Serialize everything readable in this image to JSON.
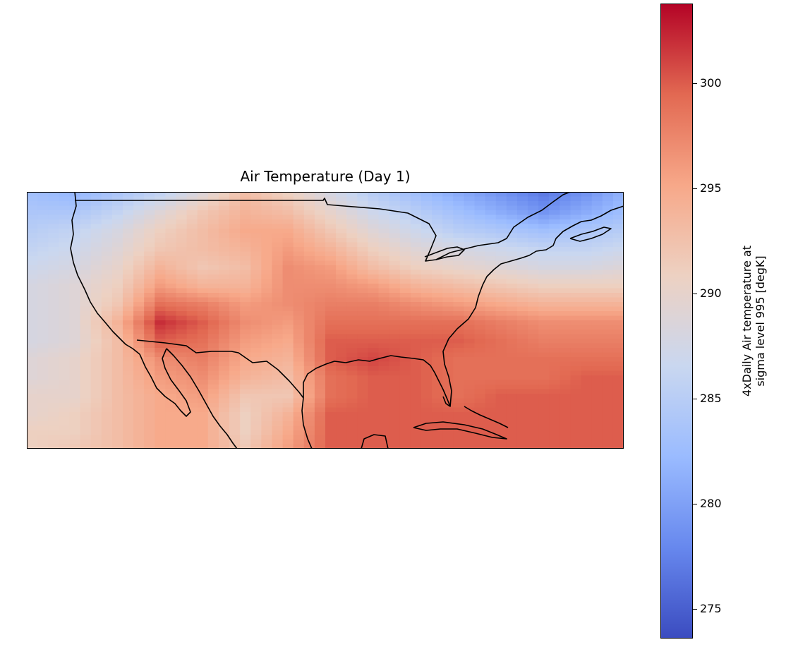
{
  "title": "Air Temperature (Day 1)",
  "colorbar": {
    "label_line1": "4xDaily Air temperature at",
    "label_line2": "sigma level 995 [degK]",
    "min": 273.6,
    "max": 303.8,
    "ticks": [
      275,
      280,
      285,
      290,
      295,
      300
    ],
    "colormap": "coolwarm",
    "stops": [
      "#3b4cc0",
      "#6788ee",
      "#9abbff",
      "#c9d7f0",
      "#edd1c2",
      "#f7a889",
      "#e26952",
      "#b40426"
    ]
  },
  "map": {
    "projection": "PlateCarree",
    "extent_lon": [
      -130,
      -60
    ],
    "extent_lat": [
      15,
      50
    ],
    "features": [
      "coastlines",
      "country-borders"
    ],
    "temperature_field": {
      "units": "degK",
      "grid_lon": [
        -130,
        -125,
        -120,
        -115,
        -110,
        -105,
        -100,
        -95,
        -90,
        -85,
        -80,
        -75,
        -70,
        -65,
        -60
      ],
      "grid_lat": [
        50,
        47.5,
        45,
        42.5,
        40,
        37.5,
        35,
        32.5,
        30,
        27.5,
        25,
        22.5,
        20,
        17.5,
        15
      ],
      "values": [
        [
          283,
          282,
          284,
          286,
          289,
          293,
          291,
          288,
          285,
          283,
          281,
          279,
          277,
          279,
          282
        ],
        [
          284,
          284,
          286,
          289,
          292,
          294,
          293,
          290,
          287,
          285,
          283,
          281,
          279,
          281,
          283
        ],
        [
          285,
          286,
          288,
          291,
          293,
          295,
          295,
          292,
          289,
          287,
          285,
          284,
          283,
          284,
          285
        ],
        [
          286,
          287,
          289,
          292,
          293,
          294,
          296,
          294,
          291,
          289,
          288,
          287,
          286,
          286,
          287
        ],
        [
          287,
          288,
          290,
          294,
          292,
          293,
          297,
          296,
          293,
          291,
          290,
          289,
          288,
          288,
          289
        ],
        [
          288,
          289,
          291,
          296,
          294,
          294,
          297,
          297,
          296,
          294,
          293,
          292,
          291,
          291,
          291
        ],
        [
          288,
          289,
          292,
          299,
          298,
          296,
          297,
          298,
          298,
          297,
          296,
          295,
          294,
          294,
          294
        ],
        [
          288,
          289,
          294,
          302,
          300,
          297,
          296,
          299,
          299,
          299,
          299,
          298,
          297,
          297,
          297
        ],
        [
          288,
          289,
          293,
          300,
          299,
          296,
          295,
          300,
          300,
          300,
          300,
          299,
          298,
          298,
          298
        ],
        [
          289,
          290,
          293,
          297,
          298,
          295,
          294,
          300,
          301,
          300,
          299,
          299,
          299,
          299,
          299
        ],
        [
          289,
          290,
          293,
          296,
          297,
          294,
          293,
          299,
          300,
          300,
          299,
          299,
          299,
          300,
          300
        ],
        [
          290,
          290,
          293,
          295,
          296,
          292,
          292,
          299,
          300,
          300,
          299,
          300,
          300,
          300,
          300
        ],
        [
          290,
          291,
          293,
          295,
          295,
          291,
          294,
          300,
          300,
          300,
          300,
          300,
          300,
          300,
          300
        ],
        [
          291,
          291,
          293,
          295,
          295,
          291,
          295,
          300,
          300,
          300,
          300,
          300,
          300,
          300,
          300
        ],
        [
          291,
          292,
          293,
          295,
          295,
          292,
          296,
          300,
          300,
          300,
          300,
          300,
          300,
          300,
          300
        ]
      ]
    }
  }
}
